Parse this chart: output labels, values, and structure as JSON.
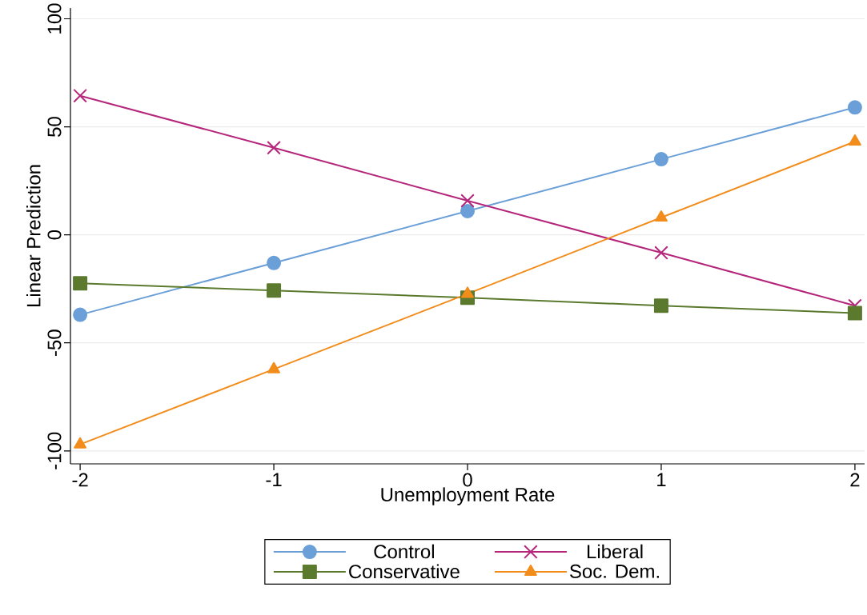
{
  "chart_data": {
    "type": "line",
    "xlabel": "Unemployment Rate",
    "ylabel": "Linear Prediction",
    "x": [
      -2,
      -1,
      0,
      1,
      2
    ],
    "xlim": [
      -2.05,
      2.05
    ],
    "xticks": [
      -2,
      -1,
      0,
      1,
      2
    ],
    "ylim": [
      -106,
      105
    ],
    "yticks": [
      -100,
      -50,
      0,
      50,
      100
    ],
    "grid": "y",
    "legend": "bottom",
    "series": [
      {
        "name": "Control",
        "color": "#6a9fd8",
        "marker": "circle",
        "values": [
          -37,
          -13,
          11,
          35,
          59
        ]
      },
      {
        "name": "Liberal",
        "color": "#b5267b",
        "marker": "cross",
        "values": [
          64.4,
          40.3,
          15.8,
          -8.3,
          -32.8
        ]
      },
      {
        "name": "Conservative",
        "color": "#5b7a2e",
        "marker": "square",
        "values": [
          -22.4,
          -25.8,
          -29.1,
          -32.8,
          -36.2
        ]
      },
      {
        "name": "Soc. Dem.",
        "color": "#f28c1b",
        "marker": "triangle",
        "values": [
          -97,
          -62.2,
          -27.3,
          8,
          43.2
        ]
      }
    ]
  }
}
